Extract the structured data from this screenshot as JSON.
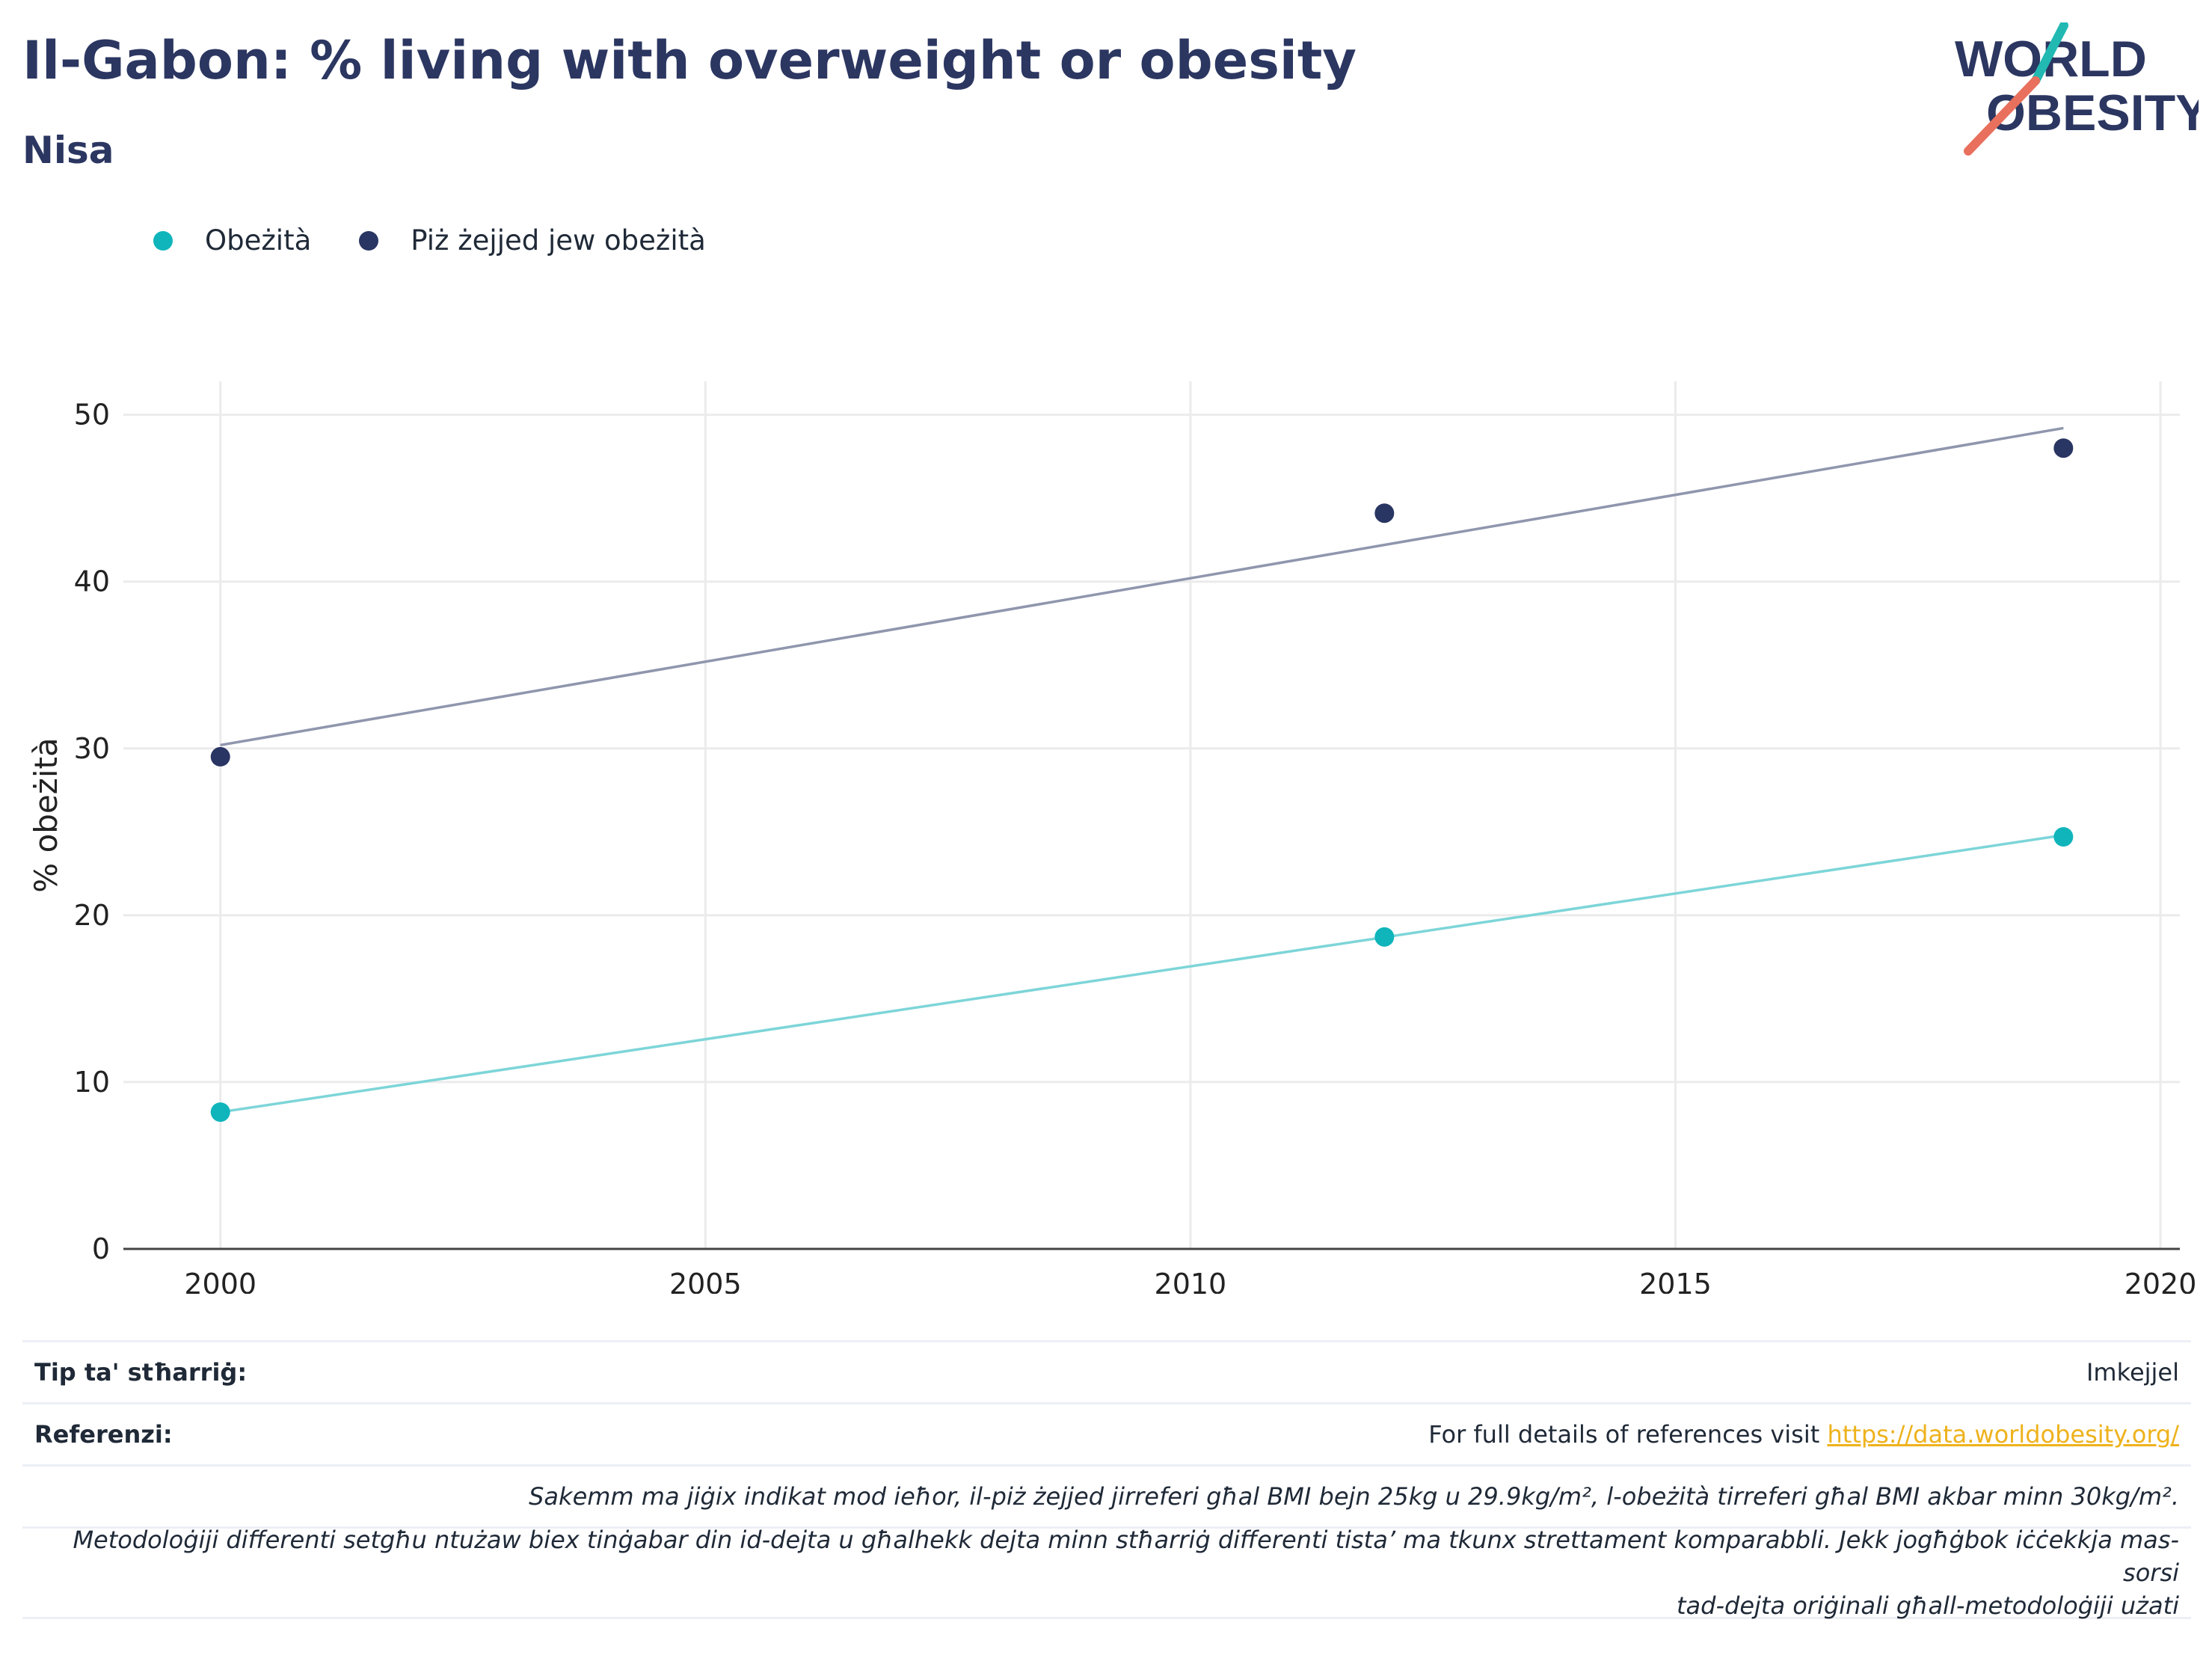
{
  "header": {
    "title": "Il-Gabon: % living with overweight or obesity",
    "subtitle": "Nisa"
  },
  "logo": {
    "line1": "WORLD",
    "line2": "OBESITY"
  },
  "colors": {
    "title": "#2b3661",
    "obesity": "#0fb5bb",
    "overweight_obesity": "#293562",
    "obesity_trend": "#7dd5d8",
    "overweight_trend": "#8f96ad",
    "grid": "#ebebeb",
    "link": "#eeb21c"
  },
  "chart_data": {
    "type": "scatter",
    "title": "Il-Gabon: % living with overweight or obesity",
    "subtitle": "Nisa",
    "xlabel": "",
    "ylabel": "% obeżità",
    "xlim": [
      1999,
      2020.2
    ],
    "ylim": [
      0,
      52
    ],
    "x_ticks": [
      2000,
      2005,
      2010,
      2015,
      2020
    ],
    "y_ticks": [
      0,
      10,
      20,
      30,
      40,
      50
    ],
    "grid": true,
    "legend_position": "top-left",
    "series": [
      {
        "name": "Obeżità",
        "color": "#0fb5bb",
        "x": [
          2000,
          2012,
          2019
        ],
        "y": [
          8.2,
          18.7,
          24.7
        ],
        "trend_color": "#7dd5d8",
        "trend": [
          [
            2000,
            8.2
          ],
          [
            2019,
            24.8
          ]
        ]
      },
      {
        "name": "Piż żejjed jew obeżità",
        "color": "#293562",
        "x": [
          2000,
          2012,
          2019
        ],
        "y": [
          29.5,
          44.1,
          48.0
        ],
        "trend_color": "#8f96ad",
        "trend": [
          [
            2000,
            30.2
          ],
          [
            2019,
            49.2
          ]
        ]
      }
    ]
  },
  "info": {
    "survey_type_label": "Tip ta' stħarriġ:",
    "survey_type_value": "Imkejjel",
    "references_label": "Referenzi:",
    "references_text": "For full details of references visit",
    "references_link": "https://data.worldobesity.org/",
    "note1": "Sakemm ma jiġix indikat mod ieħor, il-piż żejjed jirreferi għal BMI bejn 25kg u 29.9kg/m², l-obeżità tirreferi għal BMI akbar minn 30kg/m².",
    "note2_line1": "Metodoloġiji differenti setgħu ntużaw biex tinġabar din id-dejta u għalhekk dejta minn stħarriġ differenti tista’ ma tkunx strettament komparabbli. Jekk jogħġbok iċċekkja mas-sorsi",
    "note2_line2": "tad-dejta oriġinali għall-metodoloġiji użati"
  }
}
